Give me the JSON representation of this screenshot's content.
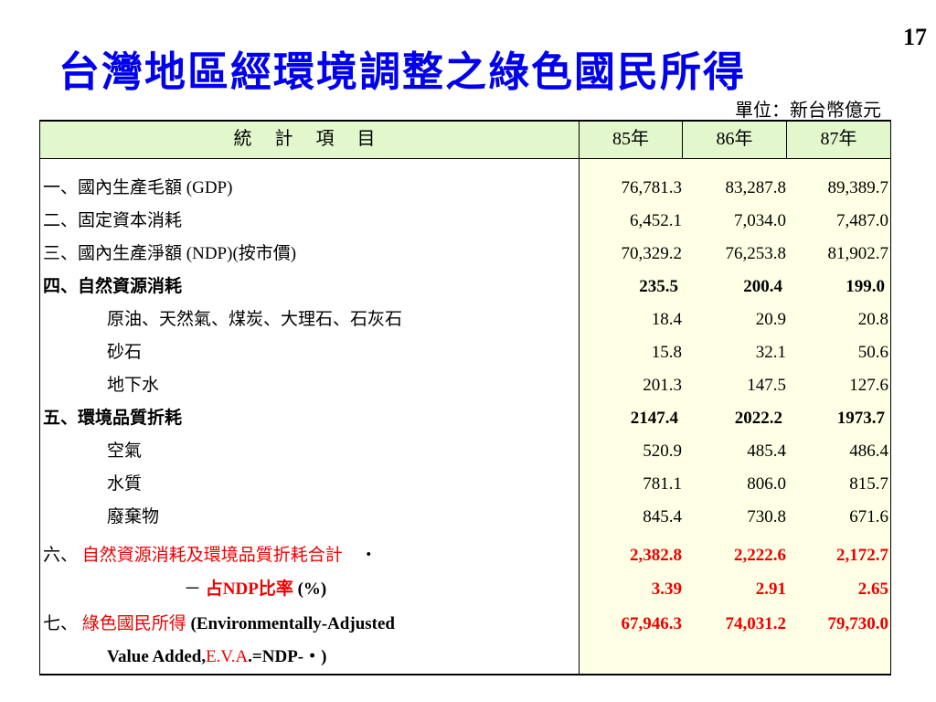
{
  "page_number": "17",
  "title": "台灣地區經環境調整之綠色國民所得",
  "unit": "單位：新台幣億元",
  "table": {
    "headers": {
      "item": "統 計 項 目",
      "years": [
        "85年",
        "86年",
        "87年"
      ]
    },
    "rows": [
      {
        "prefix": "一、",
        "label": "國內生產毛額",
        "suffix": " (GDP)",
        "values": [
          "76,781.3",
          "83,287.8",
          "89,389.7"
        ]
      },
      {
        "prefix": "二、",
        "label": "固定資本消耗",
        "suffix": "",
        "values": [
          "6,452.1",
          "7,034.0",
          "7,487.0"
        ]
      },
      {
        "prefix": "三、",
        "label": "國內生產淨額",
        "suffix": " (NDP)(按市價)",
        "values": [
          "70,329.2",
          "76,253.8",
          "81,902.7"
        ]
      },
      {
        "prefix": "四、",
        "label": "自然資源消耗",
        "suffix": "",
        "values": [
          "235.5",
          "200.4",
          "199.0"
        ]
      },
      {
        "prefix": "",
        "label": "原油、天然氣、煤炭、大理石、石灰石",
        "suffix": "",
        "values": [
          "18.4",
          "20.9",
          "20.8"
        ]
      },
      {
        "prefix": "",
        "label": "砂石",
        "suffix": "",
        "values": [
          "15.8",
          "32.1",
          "50.6"
        ]
      },
      {
        "prefix": "",
        "label": "地下水",
        "suffix": "",
        "values": [
          "201.3",
          "147.5",
          "127.6"
        ]
      },
      {
        "prefix": "五、",
        "label": "環境品質折耗",
        "suffix": "",
        "values": [
          "2147.4",
          "2022.2",
          "1973.7"
        ]
      },
      {
        "prefix": "",
        "label": "空氣",
        "suffix": "",
        "values": [
          "520.9",
          "485.4",
          "486.4"
        ]
      },
      {
        "prefix": "",
        "label": "水質",
        "suffix": "",
        "values": [
          "781.1",
          "806.0",
          "815.7"
        ]
      },
      {
        "prefix": "",
        "label": "廢棄物",
        "suffix": "",
        "values": [
          "845.4",
          "730.8",
          "671.6"
        ]
      },
      {
        "prefix": "六、 ",
        "label": "自然資源消耗及環境品質折耗合計",
        "suffix": "　・",
        "values": [
          "2,382.8",
          "2,222.6",
          "2,172.7"
        ]
      },
      {
        "prefix": "－ ",
        "label": "占NDP比率",
        "suffix": " (%)",
        "values": [
          "3.39",
          "2.91",
          "2.65"
        ]
      },
      {
        "prefix": "七、 ",
        "label": "綠色國民所得",
        "suffix": " (Environmentally-Adjusted",
        "values": [
          "67,946.3",
          "74,031.2",
          "79,730.0"
        ]
      },
      {
        "prefix": "Value Added,",
        "label": "E.V.A",
        "suffix": ".=NDP-・)",
        "values": []
      }
    ]
  }
}
